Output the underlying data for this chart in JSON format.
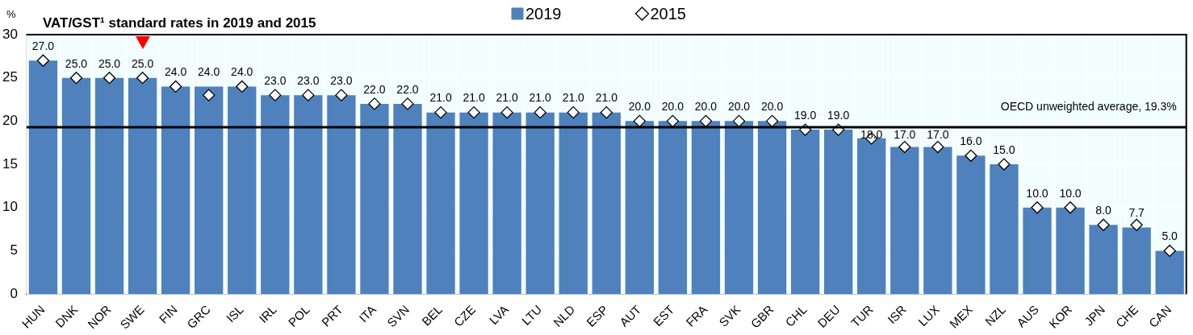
{
  "chart_data": {
    "type": "bar",
    "title": "VAT/GST¹ standard rates in 2019 and 2015",
    "ylabel": "%",
    "categories": [
      "HUN",
      "DNK",
      "NOR",
      "SWE",
      "FIN",
      "GRC",
      "ISL",
      "IRL",
      "POL",
      "PRT",
      "ITA",
      "SVN",
      "BEL",
      "CZE",
      "LVA",
      "LTU",
      "NLD",
      "ESP",
      "AUT",
      "EST",
      "FRA",
      "SVK",
      "GBR",
      "CHL",
      "DEU",
      "TUR",
      "ISR",
      "LUX",
      "MEX",
      "NZL",
      "AUS",
      "KOR",
      "JPN",
      "CHE",
      "CAN"
    ],
    "series": [
      {
        "name": "2019",
        "color": "#4f81bd",
        "values": [
          27,
          25,
          25,
          25,
          24,
          24,
          24,
          23,
          23,
          23,
          22,
          22,
          21,
          21,
          21,
          21,
          21,
          21,
          20,
          20,
          20,
          20,
          20,
          19,
          19,
          18,
          17,
          17,
          16,
          15,
          10,
          10,
          8,
          7.7,
          5
        ],
        "value_labels": [
          "27.0",
          "25.0",
          "25.0",
          "25.0",
          "24.0",
          "24.0",
          "24.0",
          "23.0",
          "23.0",
          "23.0",
          "22.0",
          "22.0",
          "21.0",
          "21.0",
          "21.0",
          "21.0",
          "21.0",
          "21.0",
          "20.0",
          "20.0",
          "20.0",
          "20.0",
          "20.0",
          "19.0",
          "19.0",
          "18.0",
          "17.0",
          "17.0",
          "16.0",
          "15.0",
          "10.0",
          "10.0",
          "8.0",
          "7.7",
          "5.0"
        ]
      },
      {
        "name": "2015",
        "type": "scatter",
        "color": "#ffffff",
        "marker": "diamond",
        "x": [
          "HUN",
          "DNK",
          "NOR",
          "SWE",
          "FIN",
          "GRC",
          "ISL",
          "IRL",
          "POL",
          "PRT",
          "ITA",
          "SVN",
          "BEL",
          "CZE",
          "LVA",
          "LTU",
          "NLD",
          "ESP",
          "AUT",
          "EST",
          "FRA",
          "SVK",
          "GBR",
          "CHL",
          "DEU",
          "TUR",
          "ISR",
          "LUX",
          "MEX",
          "NZL",
          "AUS",
          "KOR",
          "JPN",
          "CHE",
          "CAN"
        ],
        "values": [
          27,
          25,
          25,
          25,
          24,
          23,
          24,
          23,
          23,
          23,
          22,
          22,
          21,
          21,
          21,
          21,
          21,
          21,
          20,
          20,
          20,
          20,
          20,
          19,
          19,
          18,
          17,
          17,
          16,
          15,
          10,
          10,
          8,
          8,
          5
        ]
      }
    ],
    "ylim": [
      0,
      30
    ],
    "yticks": [
      0,
      5,
      10,
      15,
      20,
      25,
      30
    ],
    "grid": true,
    "legend": "top",
    "ref_lines": [
      {
        "axis": "y",
        "value": 19.3,
        "label": "OECD unweighted average, 19.3%"
      }
    ]
  }
}
